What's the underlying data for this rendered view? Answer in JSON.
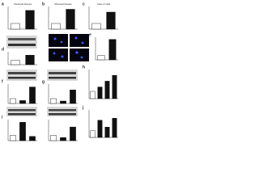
{
  "chart_data": [
    {
      "type": "bar",
      "panel": "a",
      "title": "Intestinal tissues",
      "categories": [
        null,
        null
      ],
      "values": [
        1,
        3.3
      ],
      "colors": [
        "#ffffff",
        "#111111"
      ],
      "ylim": [
        0,
        4
      ]
    },
    {
      "type": "bar",
      "panel": "b",
      "title": "Mucosal tissues",
      "categories": [
        null,
        null
      ],
      "values": [
        1,
        3.5
      ],
      "colors": [
        "#ffffff",
        "#111111"
      ],
      "ylim": [
        0,
        4
      ]
    },
    {
      "type": "bar",
      "panel": "c",
      "title": "Caco-2 cells",
      "categories": [
        null,
        null
      ],
      "values": [
        1,
        3.0
      ],
      "colors": [
        "#ffffff",
        "#111111"
      ],
      "ylim": [
        0,
        4
      ]
    },
    {
      "type": "bar",
      "panel": "d",
      "categories": [
        null,
        null
      ],
      "values": [
        1,
        2.2
      ],
      "colors": [
        "#ffffff",
        "#111111"
      ],
      "ylim": [
        0,
        3
      ]
    },
    {
      "type": "bar",
      "panel": "e",
      "categories": [
        null,
        null
      ],
      "values": [
        1,
        4.5
      ],
      "colors": [
        "#ffffff",
        "#111111"
      ],
      "ylim": [
        0,
        5
      ]
    },
    {
      "type": "bar",
      "panel": "f",
      "categories": [
        null,
        null,
        null
      ],
      "values": [
        1,
        0.6,
        3.4
      ],
      "colors": [
        "#ffffff",
        "#111111",
        "#111111"
      ],
      "ylim": [
        0,
        4
      ]
    },
    {
      "type": "bar",
      "panel": "g",
      "categories": [
        null,
        null,
        null
      ],
      "values": [
        1,
        0.5,
        2.8
      ],
      "colors": [
        "#ffffff",
        "#111111",
        "#111111"
      ],
      "ylim": [
        0,
        4
      ]
    },
    {
      "type": "bar",
      "panel": "h",
      "categories": [
        null,
        null,
        null,
        null
      ],
      "values": [
        1,
        1.6,
        2.4,
        3.2
      ],
      "colors": [
        "#ffffff",
        "#111111",
        "#111111",
        "#111111"
      ],
      "ylim": [
        0,
        4
      ]
    },
    {
      "type": "bar",
      "panel": "i",
      "categories": [
        null,
        null,
        null
      ],
      "values": [
        1,
        3.5,
        0.8
      ],
      "colors": [
        "#ffffff",
        "#111111",
        "#111111"
      ],
      "ylim": [
        0,
        4
      ]
    },
    {
      "type": "bar",
      "categories": [
        null,
        null,
        null
      ],
      "values": [
        1,
        0.6,
        2.6
      ],
      "colors": [
        "#ffffff",
        "#111111",
        "#111111"
      ],
      "ylim": [
        0,
        4
      ]
    },
    {
      "type": "bar",
      "panel": "j",
      "categories": [
        null,
        null,
        null,
        null
      ],
      "values": [
        1,
        2.5,
        1.5,
        2.8
      ],
      "colors": [
        "#ffffff",
        "#111111",
        "#111111",
        "#111111"
      ],
      "ylim": [
        0,
        4
      ]
    }
  ]
}
